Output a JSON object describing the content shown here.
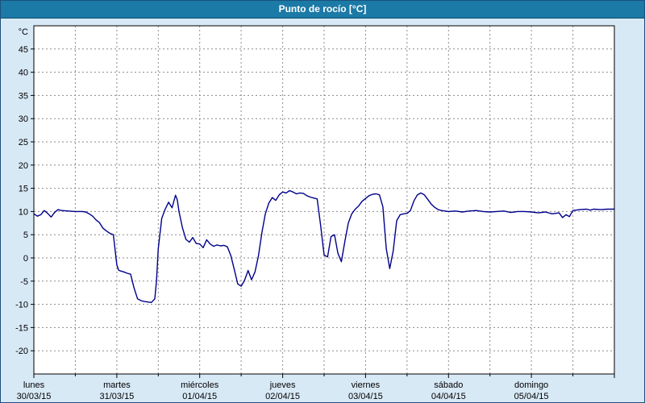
{
  "header": {
    "title": "Punto de rocío [°C]",
    "bg_color": "#1b7aa6",
    "text_color": "#ffffff"
  },
  "panel": {
    "bg_color": "#d8e9f6",
    "plot_bg_color": "#ffffff",
    "plot_border_color": "#000000",
    "grid_color": "#8a8a8a"
  },
  "chart_data": {
    "type": "line",
    "title": "Punto de rocío [°C]",
    "ylabel": "°C",
    "xlabel": "",
    "grid": true,
    "legend": "none",
    "ylim": [
      -25,
      50
    ],
    "xlim": [
      0,
      168
    ],
    "x_unit": "hours",
    "x_gridline_interval_hours": 12,
    "x_day_tick_interval_hours": 24,
    "y_ticks": [
      "45",
      "40",
      "35",
      "30",
      "25",
      "20",
      "15",
      "10",
      "5",
      "0",
      "-5",
      "-10",
      "-15",
      "-20"
    ],
    "y_tick_values": [
      45,
      40,
      35,
      30,
      25,
      20,
      15,
      10,
      5,
      0,
      -5,
      -10,
      -15,
      -20
    ],
    "day_labels": [
      {
        "name": "lunes",
        "date": "30/03/15"
      },
      {
        "name": "martes",
        "date": "31/03/15"
      },
      {
        "name": "miércoles",
        "date": "01/04/15"
      },
      {
        "name": "jueves",
        "date": "02/04/15"
      },
      {
        "name": "viernes",
        "date": "03/04/15"
      },
      {
        "name": "sábado",
        "date": "04/04/15"
      },
      {
        "name": "domingo",
        "date": "05/04/15"
      }
    ],
    "series": [
      {
        "name": "Punto de rocío",
        "color": "#00008b",
        "points": [
          [
            0,
            9.5
          ],
          [
            1,
            9.0
          ],
          [
            2,
            9.3
          ],
          [
            3,
            10.2
          ],
          [
            4,
            9.6
          ],
          [
            5,
            8.8
          ],
          [
            6,
            9.8
          ],
          [
            7,
            10.4
          ],
          [
            8,
            10.2
          ],
          [
            10,
            10.1
          ],
          [
            12,
            10.0
          ],
          [
            14,
            10.0
          ],
          [
            15,
            9.9
          ],
          [
            16,
            9.5
          ],
          [
            17,
            9.0
          ],
          [
            18,
            8.2
          ],
          [
            19,
            7.6
          ],
          [
            20,
            6.4
          ],
          [
            21,
            5.8
          ],
          [
            22,
            5.3
          ],
          [
            23,
            5.0
          ],
          [
            24,
            -1.5
          ],
          [
            24.5,
            -2.6
          ],
          [
            25,
            -2.8
          ],
          [
            26,
            -3.0
          ],
          [
            27,
            -3.3
          ],
          [
            28,
            -3.5
          ],
          [
            29,
            -6.5
          ],
          [
            30,
            -8.8
          ],
          [
            31,
            -9.2
          ],
          [
            32,
            -9.4
          ],
          [
            33,
            -9.5
          ],
          [
            34,
            -9.6
          ],
          [
            35,
            -8.8
          ],
          [
            35.5,
            -5.0
          ],
          [
            36,
            2.0
          ],
          [
            37,
            8.5
          ],
          [
            38,
            10.5
          ],
          [
            39,
            12.0
          ],
          [
            40,
            10.8
          ],
          [
            41,
            13.5
          ],
          [
            41.5,
            12.5
          ],
          [
            42,
            10.0
          ],
          [
            43,
            6.5
          ],
          [
            44,
            4.0
          ],
          [
            45,
            3.4
          ],
          [
            46,
            4.4
          ],
          [
            47,
            3.1
          ],
          [
            48,
            3.0
          ],
          [
            49,
            2.2
          ],
          [
            50,
            3.9
          ],
          [
            51,
            3.0
          ],
          [
            52,
            2.5
          ],
          [
            53,
            2.8
          ],
          [
            54,
            2.6
          ],
          [
            55,
            2.7
          ],
          [
            56,
            2.4
          ],
          [
            57,
            0.5
          ],
          [
            58,
            -2.5
          ],
          [
            59,
            -5.6
          ],
          [
            60,
            -6.1
          ],
          [
            61,
            -4.8
          ],
          [
            62,
            -2.7
          ],
          [
            63,
            -4.7
          ],
          [
            64,
            -3.0
          ],
          [
            65,
            0.5
          ],
          [
            66,
            5.5
          ],
          [
            67,
            9.5
          ],
          [
            68,
            11.8
          ],
          [
            69,
            13.0
          ],
          [
            70,
            12.4
          ],
          [
            71,
            13.6
          ],
          [
            72,
            14.2
          ],
          [
            73,
            14.0
          ],
          [
            74,
            14.5
          ],
          [
            75,
            14.2
          ],
          [
            76,
            13.8
          ],
          [
            77,
            14.0
          ],
          [
            78,
            13.9
          ],
          [
            79,
            13.4
          ],
          [
            80,
            13.1
          ],
          [
            81,
            12.9
          ],
          [
            82,
            12.7
          ],
          [
            83,
            7.0
          ],
          [
            84,
            0.6
          ],
          [
            85,
            0.2
          ],
          [
            86,
            4.6
          ],
          [
            87,
            5.0
          ],
          [
            88,
            1.0
          ],
          [
            89,
            -0.8
          ],
          [
            90,
            3.5
          ],
          [
            91,
            7.5
          ],
          [
            92,
            9.5
          ],
          [
            93,
            10.5
          ],
          [
            94,
            11.2
          ],
          [
            95,
            12.2
          ],
          [
            96,
            12.8
          ],
          [
            97,
            13.4
          ],
          [
            98,
            13.7
          ],
          [
            99,
            13.8
          ],
          [
            100,
            13.6
          ],
          [
            101,
            11.0
          ],
          [
            102,
            2.0
          ],
          [
            103,
            -2.3
          ],
          [
            104,
            1.5
          ],
          [
            105,
            8.0
          ],
          [
            106,
            9.3
          ],
          [
            107,
            9.5
          ],
          [
            108,
            9.6
          ],
          [
            109,
            10.2
          ],
          [
            110,
            12.3
          ],
          [
            111,
            13.6
          ],
          [
            112,
            14.0
          ],
          [
            113,
            13.6
          ],
          [
            114,
            12.6
          ],
          [
            115,
            11.6
          ],
          [
            116,
            10.9
          ],
          [
            117,
            10.4
          ],
          [
            118,
            10.2
          ],
          [
            119,
            10.1
          ],
          [
            120,
            10.0
          ],
          [
            122,
            10.1
          ],
          [
            124,
            9.9
          ],
          [
            126,
            10.1
          ],
          [
            128,
            10.2
          ],
          [
            130,
            10.0
          ],
          [
            132,
            9.9
          ],
          [
            134,
            10.0
          ],
          [
            136,
            10.1
          ],
          [
            138,
            9.8
          ],
          [
            140,
            10.0
          ],
          [
            142,
            10.0
          ],
          [
            144,
            9.9
          ],
          [
            146,
            9.7
          ],
          [
            148,
            9.9
          ],
          [
            150,
            9.5
          ],
          [
            152,
            9.7
          ],
          [
            153,
            8.7
          ],
          [
            154,
            9.3
          ],
          [
            155,
            8.9
          ],
          [
            156,
            10.2
          ],
          [
            158,
            10.4
          ],
          [
            160,
            10.5
          ],
          [
            161,
            10.3
          ],
          [
            162,
            10.5
          ],
          [
            164,
            10.4
          ],
          [
            166,
            10.5
          ],
          [
            168,
            10.5
          ]
        ]
      }
    ]
  }
}
